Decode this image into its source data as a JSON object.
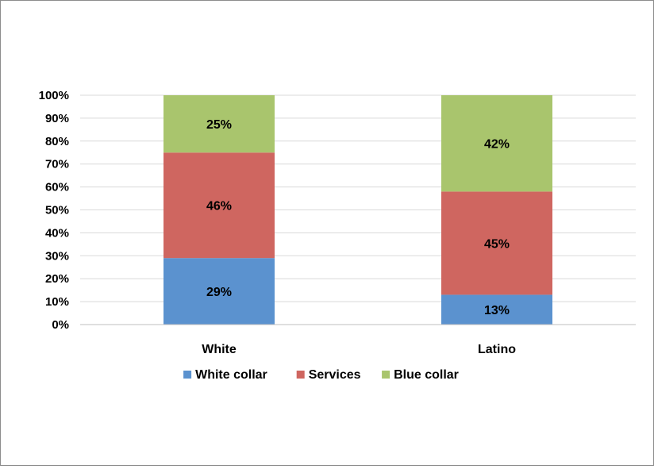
{
  "chart_data": {
    "type": "bar",
    "stacked": true,
    "percent": true,
    "categories": [
      "White",
      "Latino"
    ],
    "series": [
      {
        "name": "White collar",
        "values": [
          29,
          13
        ],
        "color": "#5b92cf",
        "labels": [
          "29%",
          "13%"
        ]
      },
      {
        "name": "Services",
        "values": [
          46,
          45
        ],
        "color": "#cf6660",
        "labels": [
          "46%",
          "45%"
        ]
      },
      {
        "name": "Blue collar",
        "values": [
          25,
          42
        ],
        "color": "#a9c56d",
        "labels": [
          "25%",
          "42%"
        ]
      }
    ],
    "ylim": [
      0,
      100
    ],
    "yticks": [
      "0%",
      "10%",
      "20%",
      "30%",
      "40%",
      "50%",
      "60%",
      "70%",
      "80%",
      "90%",
      "100%"
    ],
    "grid": true,
    "legend_position": "bottom"
  }
}
